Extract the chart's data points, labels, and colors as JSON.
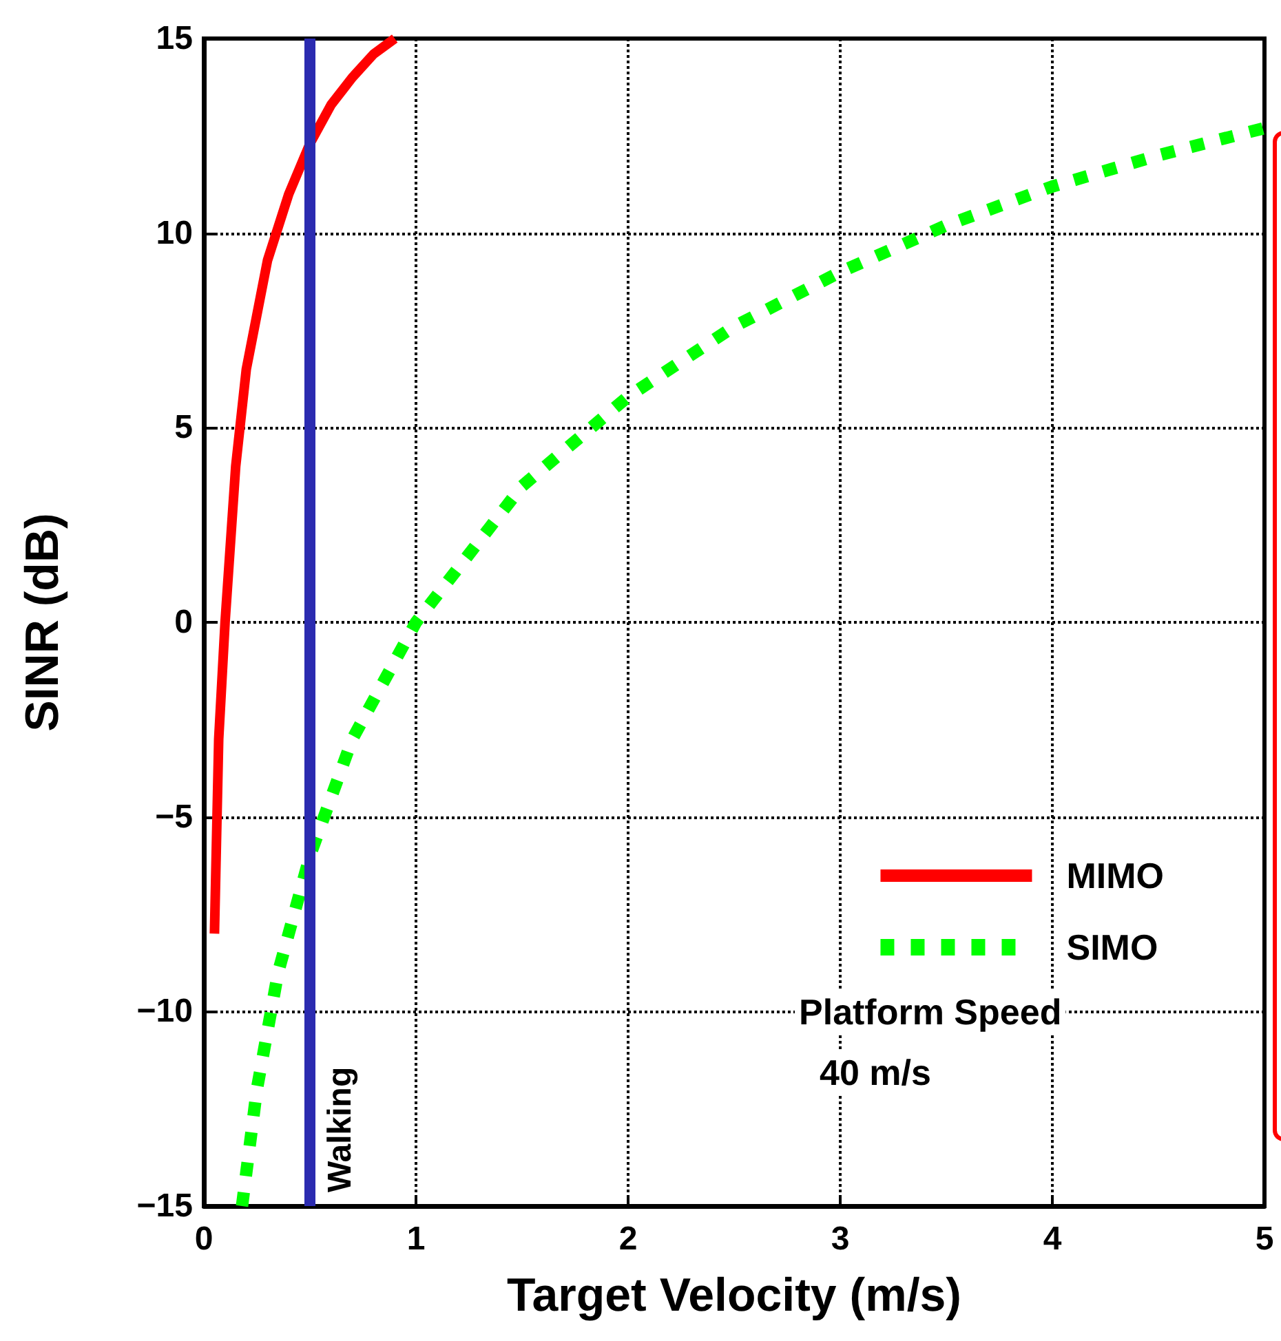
{
  "chart_data": {
    "type": "line",
    "xlabel": "Target Velocity (m/s)",
    "ylabel": "SINR (dB)",
    "xlim": [
      0,
      5
    ],
    "xticks": [
      0,
      1,
      2,
      3,
      4,
      5
    ],
    "ylim": [
      -15,
      15
    ],
    "yticks": [
      -15,
      -10,
      -5,
      0,
      5,
      10,
      15
    ],
    "grid": true,
    "legend": "bottom right",
    "series": [
      {
        "name": "MIMO",
        "color": "#ff0000",
        "line_style": "solid",
        "x": [
          0.05,
          0.07,
          0.1,
          0.15,
          0.2,
          0.3,
          0.4,
          0.5,
          0.6,
          0.7,
          0.8,
          0.9
        ],
        "values": [
          -8,
          -3,
          0,
          4,
          6.5,
          9.3,
          11,
          12.3,
          13.3,
          14,
          14.6,
          15
        ]
      },
      {
        "name": "SIMO",
        "color": "#00ff00",
        "line_style": "dashed",
        "x": [
          0.18,
          0.25,
          0.35,
          0.5,
          0.7,
          1,
          1.5,
          2,
          2.5,
          3,
          3.5,
          4,
          4.5,
          5
        ],
        "values": [
          -15,
          -12,
          -9,
          -6,
          -3,
          0,
          3.5,
          5.8,
          7.6,
          9,
          10.2,
          11.2,
          12,
          12.7
        ]
      }
    ],
    "ref_lines": [
      {
        "axis": "x",
        "value": 0.5,
        "label": "Walking",
        "color": "#2b2bb0"
      }
    ],
    "annotations": [
      "Platform Speed",
      "40 m/s"
    ]
  }
}
